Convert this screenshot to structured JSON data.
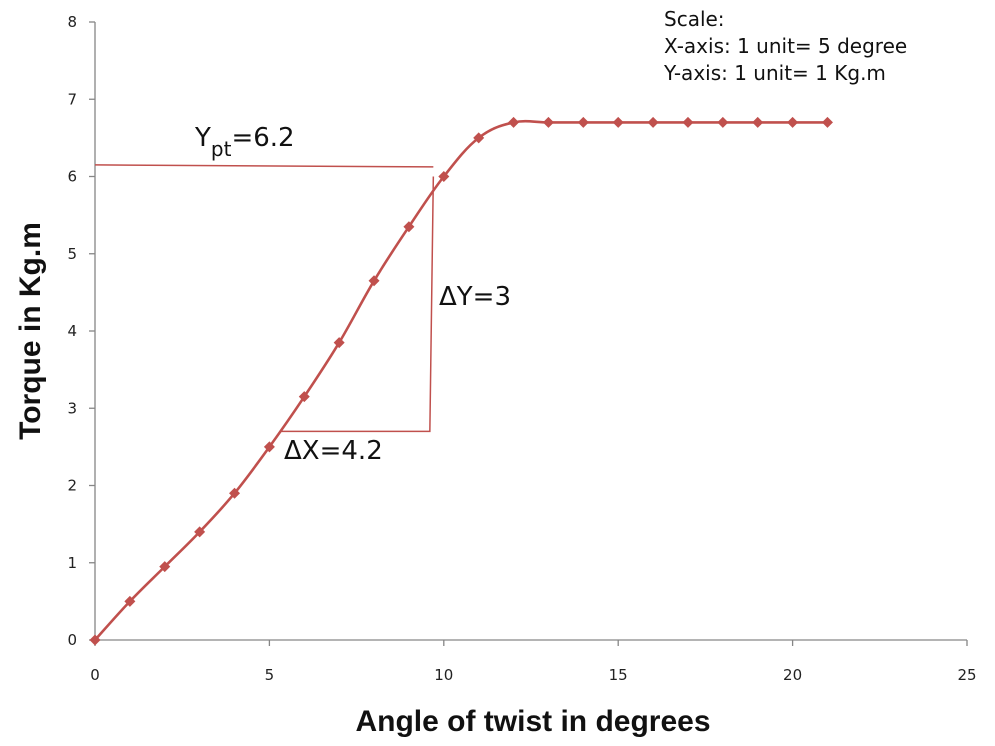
{
  "scale_note": {
    "title": "Scale:",
    "x_line": "X-axis: 1 unit= 5 degree",
    "y_line": "Y-axis: 1 unit= 1 Kg.m"
  },
  "annotations": {
    "ypt_main": "Y",
    "ypt_sub": "pt",
    "ypt_value": "=6.2",
    "delta_y": "ΔY=3",
    "delta_x": "ΔX=4.2"
  },
  "construction": {
    "yield_level": 6.15,
    "yield_x": 9.7,
    "triangle_top": [
      9.7,
      6.0
    ],
    "triangle_corner": [
      9.6,
      2.7
    ],
    "triangle_left": [
      5.3,
      2.7
    ]
  },
  "chart_data": {
    "type": "line",
    "title": "",
    "xlabel": "Angle of twist in degrees",
    "ylabel": "Torque in Kg.m",
    "xlim": [
      0,
      25
    ],
    "ylim": [
      0,
      8
    ],
    "xticks": [
      "0",
      "5",
      "10",
      "15",
      "20",
      "25"
    ],
    "yticks": [
      "0",
      "1",
      "2",
      "3",
      "4",
      "5",
      "6",
      "7",
      "8"
    ],
    "grid": false,
    "legend": "none",
    "line_color": "#c0504d",
    "marker_color": "#c0504d",
    "marker": "diamond",
    "series": [
      {
        "x": [
          0,
          1,
          2,
          3,
          4,
          5,
          6,
          7,
          8,
          9,
          10,
          11,
          12,
          13,
          14,
          15,
          16,
          17,
          18,
          19,
          20,
          21
        ],
        "values": [
          0,
          0.5,
          0.95,
          1.4,
          1.9,
          2.5,
          3.15,
          3.85,
          4.65,
          5.35,
          6.0,
          6.5,
          6.7,
          6.7,
          6.7,
          6.7,
          6.7,
          6.7,
          6.7,
          6.7,
          6.7,
          6.7
        ]
      }
    ]
  }
}
